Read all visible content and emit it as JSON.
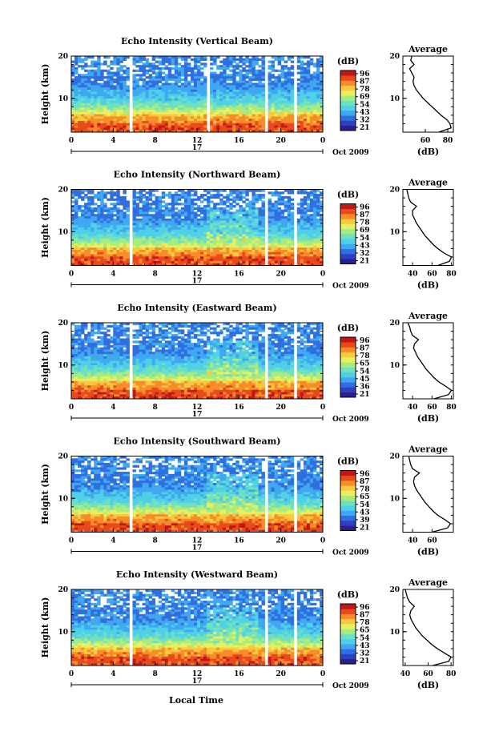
{
  "chart_data": [
    {
      "type": "heatmap",
      "title": "Echo Intensity (Vertical Beam)",
      "ylabel": "Height (km)",
      "x_ticks": [
        "0",
        "4",
        "8",
        "12",
        "16",
        "20",
        "0"
      ],
      "y_ticks": [
        "20",
        "10"
      ],
      "date_day": "17",
      "date_label": "Oct 2009",
      "xlim": [
        0,
        24
      ],
      "ylim": [
        2,
        20
      ],
      "colorbar_unit": "(dB)",
      "colorbar_ticks": [
        "96",
        "87",
        "78",
        "69",
        "54",
        "43",
        "32",
        "21"
      ],
      "gaps_hours": [
        [
          5.6,
          5.9
        ],
        [
          12.8,
          13.1
        ],
        [
          18.6,
          18.9
        ],
        [
          21.2,
          21.5
        ]
      ],
      "profile": {
        "title": "Average",
        "xlabel": "(dB)",
        "x_ticks": [
          "60",
          "80"
        ],
        "y_ticks": [
          "20",
          "10"
        ],
        "xlim": [
          40,
          85
        ],
        "height_km": [
          2,
          3,
          4,
          5,
          6,
          7,
          8,
          9,
          10,
          11,
          12,
          13,
          14,
          15,
          16,
          17,
          18,
          19,
          20
        ],
        "values_db": [
          72,
          83,
          82,
          79,
          74,
          70,
          66,
          62,
          58,
          55,
          52,
          50,
          49,
          50,
          48,
          46,
          50,
          47,
          48
        ]
      }
    },
    {
      "type": "heatmap",
      "title": "Echo Intensity (Northward Beam)",
      "ylabel": "Height (km)",
      "x_ticks": [
        "0",
        "4",
        "8",
        "12",
        "16",
        "20",
        "0"
      ],
      "y_ticks": [
        "20",
        "10"
      ],
      "date_day": "17",
      "date_label": "Oct 2009",
      "xlim": [
        0,
        24
      ],
      "ylim": [
        2,
        20
      ],
      "colorbar_unit": "(dB)",
      "colorbar_ticks": [
        "96",
        "87",
        "78",
        "69",
        "54",
        "43",
        "32",
        "21"
      ],
      "gaps_hours": [
        [
          5.4,
          5.7
        ],
        [
          12.8,
          13.0
        ],
        [
          18.6,
          18.9
        ],
        [
          21.2,
          21.5
        ]
      ],
      "profile": {
        "title": "Average",
        "xlabel": "(dB)",
        "x_ticks": [
          "40",
          "60",
          "80"
        ],
        "y_ticks": [
          "20",
          "10"
        ],
        "xlim": [
          30,
          82
        ],
        "height_km": [
          2,
          3,
          4,
          5,
          6,
          7,
          8,
          9,
          10,
          11,
          12,
          13,
          14,
          15,
          16,
          17,
          18,
          19,
          20
        ],
        "values_db": [
          66,
          78,
          80,
          72,
          66,
          61,
          57,
          53,
          50,
          47,
          44,
          42,
          40,
          40,
          44,
          38,
          36,
          35,
          34
        ]
      }
    },
    {
      "type": "heatmap",
      "title": "Echo Intensity (Eastward Beam)",
      "ylabel": "Height (km)",
      "x_ticks": [
        "0",
        "4",
        "8",
        "12",
        "16",
        "20",
        "0"
      ],
      "y_ticks": [
        "20",
        "10"
      ],
      "date_day": "17",
      "date_label": "Oct 2009",
      "xlim": [
        0,
        24
      ],
      "ylim": [
        2,
        20
      ],
      "colorbar_unit": "(dB)",
      "colorbar_ticks": [
        "96",
        "87",
        "78",
        "65",
        "54",
        "45",
        "36",
        "21"
      ],
      "gaps_hours": [
        [
          5.4,
          5.7
        ],
        [
          12.8,
          13.0
        ],
        [
          18.6,
          18.9
        ],
        [
          21.2,
          21.5
        ]
      ],
      "profile": {
        "title": "Average",
        "xlabel": "(dB)",
        "x_ticks": [
          "40",
          "60",
          "80"
        ],
        "y_ticks": [
          "20",
          "10"
        ],
        "xlim": [
          30,
          82
        ],
        "height_km": [
          2,
          3,
          4,
          5,
          6,
          7,
          8,
          9,
          10,
          11,
          12,
          13,
          14,
          15,
          16,
          17,
          18,
          19,
          20
        ],
        "values_db": [
          62,
          77,
          80,
          74,
          67,
          62,
          58,
          54,
          51,
          48,
          45,
          43,
          41,
          42,
          46,
          40,
          38,
          37,
          35
        ]
      }
    },
    {
      "type": "heatmap",
      "title": "Echo Intensity (Southward Beam)",
      "ylabel": "Height (km)",
      "x_ticks": [
        "0",
        "4",
        "8",
        "12",
        "16",
        "20",
        "0"
      ],
      "y_ticks": [
        "20",
        "10"
      ],
      "date_day": "17",
      "date_label": "Oct 2009",
      "xlim": [
        0,
        24
      ],
      "ylim": [
        2,
        20
      ],
      "colorbar_unit": "(dB)",
      "colorbar_ticks": [
        "96",
        "87",
        "78",
        "65",
        "54",
        "43",
        "39",
        "21"
      ],
      "gaps_hours": [
        [
          5.4,
          5.7
        ],
        [
          12.8,
          13.0
        ],
        [
          18.6,
          18.9
        ],
        [
          21.2,
          21.5
        ]
      ],
      "profile": {
        "title": "Average",
        "xlabel": "(dB)",
        "x_ticks": [
          "40",
          "60"
        ],
        "y_ticks": [
          "20",
          "10"
        ],
        "xlim": [
          30,
          82
        ],
        "height_km": [
          2,
          3,
          4,
          5,
          6,
          7,
          8,
          9,
          10,
          11,
          12,
          13,
          14,
          15,
          16,
          17,
          18,
          19,
          20
        ],
        "values_db": [
          60,
          76,
          79,
          73,
          66,
          61,
          57,
          53,
          50,
          47,
          44,
          42,
          41,
          42,
          47,
          40,
          38,
          37,
          36
        ]
      }
    },
    {
      "type": "heatmap",
      "title": "Echo Intensity (Westward Beam)",
      "ylabel": "Height (km)",
      "x_ticks": [
        "0",
        "4",
        "8",
        "12",
        "16",
        "20",
        "0"
      ],
      "y_ticks": [
        "20",
        "10"
      ],
      "date_day": "17",
      "date_label": "Oct 2009",
      "xlim": [
        0,
        24
      ],
      "ylim": [
        2,
        20
      ],
      "colorbar_unit": "(dB)",
      "colorbar_ticks": [
        "96",
        "87",
        "78",
        "65",
        "54",
        "43",
        "32",
        "21"
      ],
      "gaps_hours": [
        [
          5.4,
          5.7
        ],
        [
          12.8,
          13.0
        ],
        [
          18.6,
          18.9
        ],
        [
          21.2,
          21.5
        ]
      ],
      "profile": {
        "title": "Average",
        "xlabel": "(dB)",
        "x_ticks": [
          "40",
          "60",
          "80"
        ],
        "y_ticks": [
          "20",
          "10"
        ],
        "xlim": [
          38,
          82
        ],
        "height_km": [
          2,
          3,
          4,
          5,
          6,
          7,
          8,
          9,
          10,
          11,
          12,
          13,
          14,
          15,
          16,
          17,
          18,
          19,
          20
        ],
        "values_db": [
          64,
          78,
          80,
          74,
          68,
          63,
          59,
          55,
          52,
          49,
          47,
          45,
          44,
          45,
          48,
          44,
          42,
          41,
          40
        ]
      }
    }
  ],
  "xlabel": "Local Time",
  "colormap": [
    "#2a1f8f",
    "#2f3fbf",
    "#2f6fe0",
    "#3fa8f0",
    "#4fd0e8",
    "#6fe0c0",
    "#a8ec80",
    "#e8f060",
    "#f8c840",
    "#f88c28",
    "#e84a1c",
    "#c01818"
  ]
}
